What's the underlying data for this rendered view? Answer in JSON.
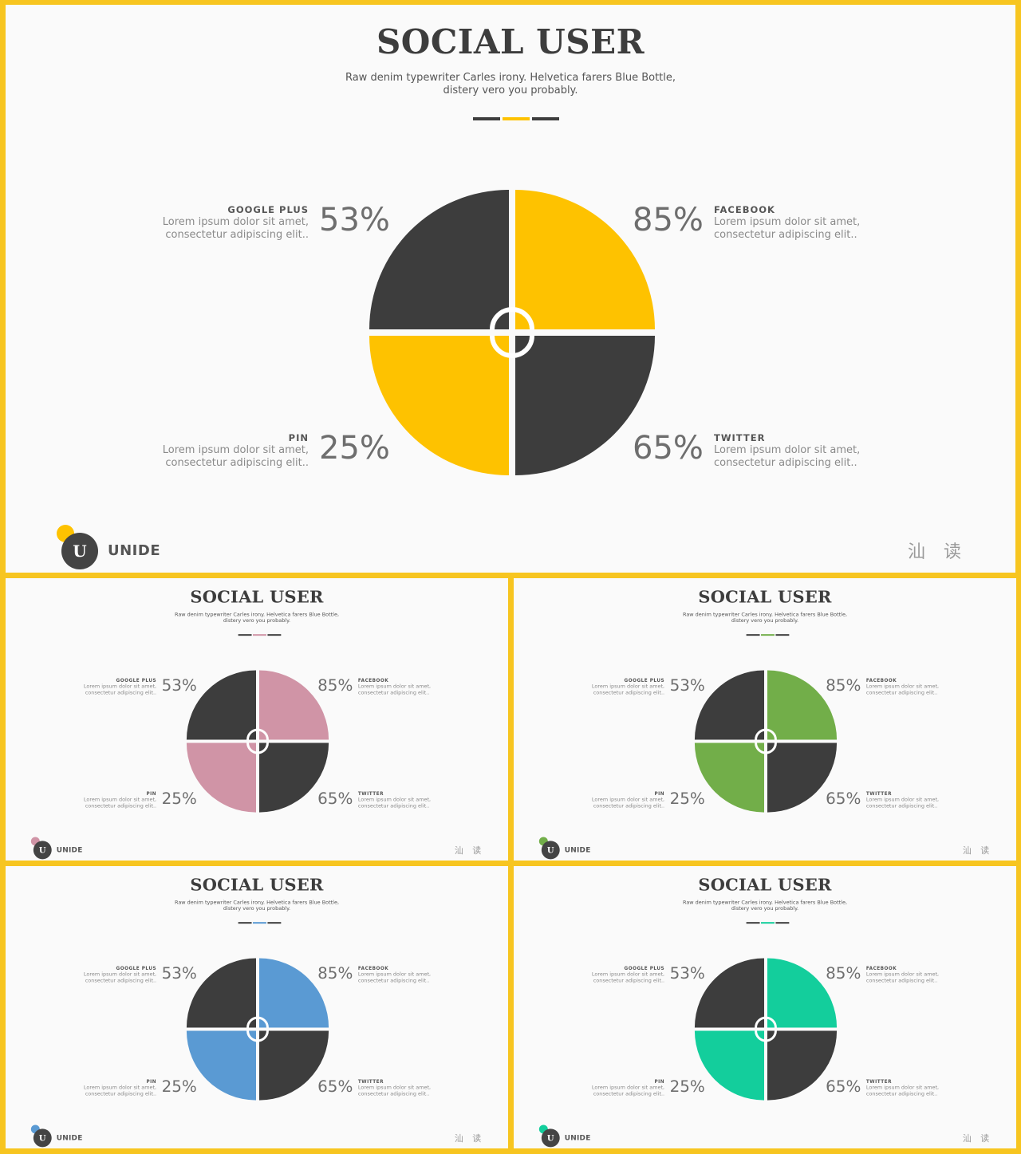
{
  "slide": {
    "title": "SOCIAL USER",
    "subtitle_line1": "Raw denim typewriter Carles irony. Helvetica farers Blue Bottle,",
    "subtitle_line2": "distery vero you probably.",
    "desc_line1": "Lorem ipsum dolor sit amet,",
    "desc_line2": "consectetur adipiscing elit..",
    "brand": "UNIDE",
    "corner_text": "汕 读",
    "dark_color": "#3d3d3d",
    "segments": {
      "top_left": {
        "name": "GOOGLE PLUS",
        "value": "53%"
      },
      "top_right": {
        "name": "FACEBOOK",
        "value": "85%"
      },
      "bottom_left": {
        "name": "PIN",
        "value": "25%"
      },
      "bottom_right": {
        "name": "TWITTER",
        "value": "65%"
      }
    }
  },
  "variants": [
    {
      "accent": "#fec200"
    },
    {
      "accent": "#d094a6"
    },
    {
      "accent": "#72ae49"
    },
    {
      "accent": "#5a9ad3"
    },
    {
      "accent": "#13ce9c"
    }
  ]
}
